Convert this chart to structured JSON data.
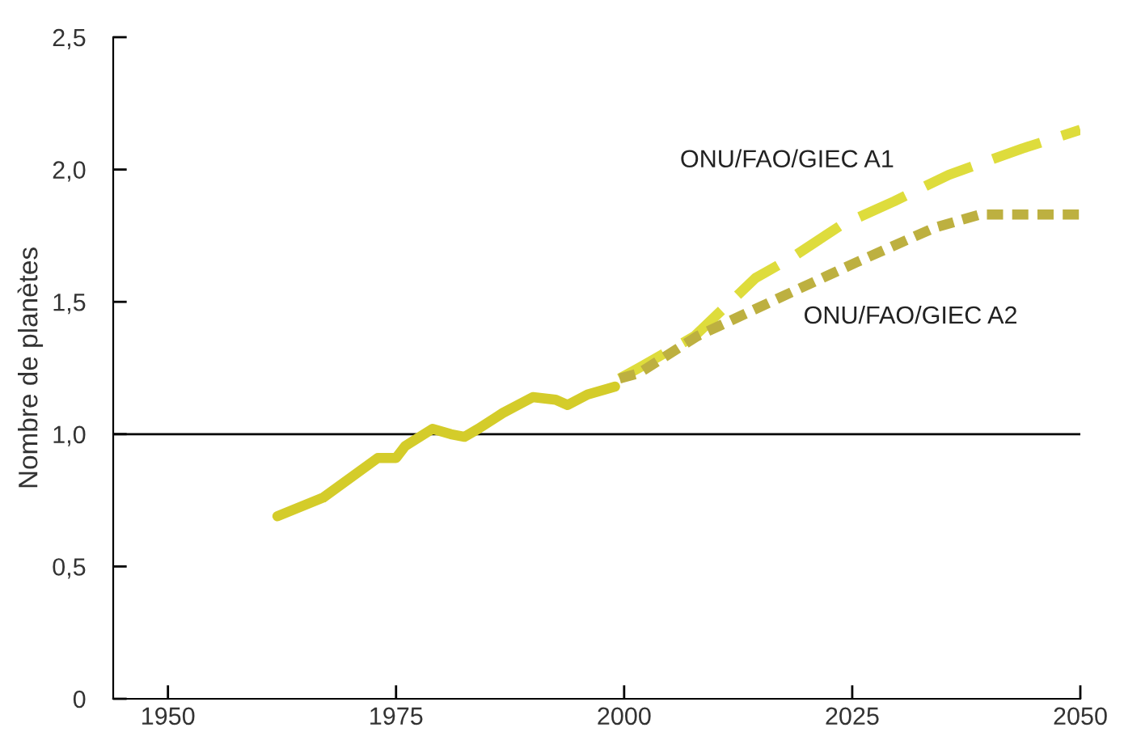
{
  "chart_data": {
    "type": "line",
    "ylabel": "Nombre de planètes",
    "xlim": [
      1944,
      2050
    ],
    "xticks": [
      1950,
      1975,
      2000,
      2025,
      2050
    ],
    "ylim": [
      0,
      2.5
    ],
    "yticks": [
      0,
      {
        "value": 0.5,
        "label": "0,5"
      },
      {
        "value": 1.0,
        "label": "1,0"
      },
      {
        "value": 1.5,
        "label": "1,5"
      },
      {
        "value": 2.0,
        "label": "2,0"
      },
      {
        "value": 2.5,
        "label": "2,5"
      }
    ],
    "grid": false,
    "marker": "none",
    "ref_lines": [
      {
        "axis": "y",
        "value": 1.0,
        "color": "#000000",
        "line_style": "solid"
      }
    ],
    "series": [
      {
        "color": "#d4cc2a",
        "line_style": "solid",
        "x": [
          1962,
          1967,
          1973,
          1975,
          1976,
          1979,
          1981,
          1982.5,
          1984,
          1986.7,
          1990,
          1992.5,
          1993.8,
          1996,
          1999
        ],
        "values": [
          0.69,
          0.76,
          0.91,
          0.91,
          0.955,
          1.02,
          1.0,
          0.99,
          1.02,
          1.08,
          1.14,
          1.13,
          1.11,
          1.15,
          1.18
        ]
      },
      {
        "name": "ONU/FAO/GIEC A1",
        "color": "#dedc3c",
        "line_style": "dashed",
        "x": [
          1999.5,
          2001.6,
          2007.7,
          2014.4,
          2018.5,
          2023.8,
          2029.6,
          2035.6,
          2043.7,
          2050
        ],
        "values": [
          1.21,
          1.25,
          1.37,
          1.59,
          1.67,
          1.79,
          1.88,
          1.98,
          2.08,
          2.15
        ]
      },
      {
        "name": "ONU/FAO/GIEC A2",
        "color": "#bdb040",
        "line_style": "dotted",
        "x": [
          1999.5,
          2001.6,
          2008,
          2016.7,
          2025.5,
          2034,
          2039,
          2050
        ],
        "values": [
          1.21,
          1.23,
          1.37,
          1.51,
          1.65,
          1.78,
          1.83,
          1.83
        ]
      }
    ]
  }
}
